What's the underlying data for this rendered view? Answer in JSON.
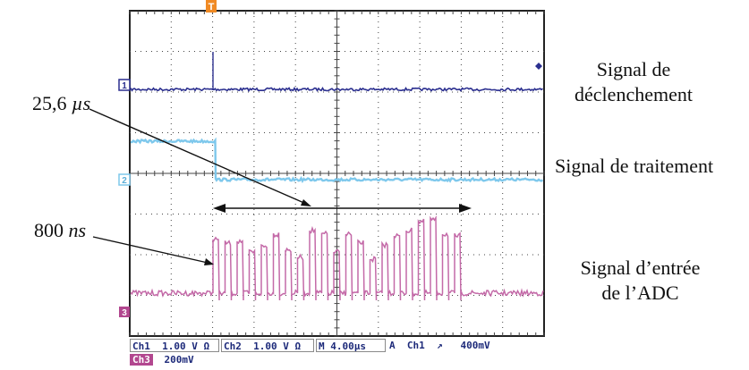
{
  "labels": {
    "trigger_signal": [
      "Signal de",
      "déclenchement"
    ],
    "processing_signal": "Signal de traitement",
    "adc_input_signal": [
      "Signal d’entrée",
      "de l’ADC"
    ]
  },
  "annotations": {
    "duration_long_value": "25,6 ",
    "duration_long_unit": "µs",
    "duration_short_value": "800 ",
    "duration_short_unit": "ns"
  },
  "scope": {
    "trigger_marker": "T",
    "channel_markers": {
      "ch1": "1",
      "ch2": "2",
      "ch3": "3"
    },
    "status_bar": {
      "ch1_label": "Ch1",
      "ch1_scale": "1.00 V",
      "ch1_coupling": "Ω",
      "ch2_label": "Ch2",
      "ch2_scale": "1.00 V",
      "ch2_coupling": "Ω",
      "timebase_prefix": "M",
      "timebase": "4.00µs",
      "trigger_mode": "A",
      "trigger_source": "Ch1",
      "trigger_slope": "↗",
      "trigger_level": "400mV",
      "ch3_label": "Ch3",
      "ch3_scale": "200mV"
    },
    "colors": {
      "ch1": "#2b2f8f",
      "ch2": "#7ec8ec",
      "ch3": "#c46aa8",
      "trigger": "#f08a24"
    }
  }
}
